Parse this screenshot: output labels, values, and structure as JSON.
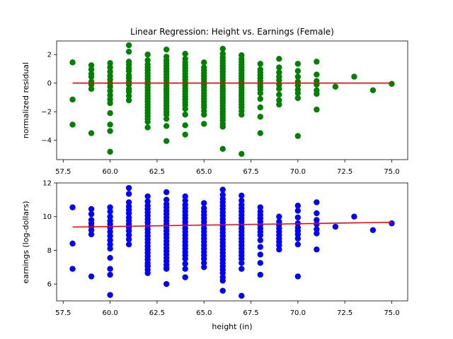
{
  "chart_data": [
    {
      "type": "scatter",
      "title": "Linear Regression: Height vs. Earnings (Female)",
      "xlabel": "",
      "ylabel": "normalized residual",
      "xlim": [
        57.15,
        75.85
      ],
      "ylim": [
        -5.35,
        2.95
      ],
      "xticks": [
        "57.5",
        "60.0",
        "62.5",
        "65.0",
        "67.5",
        "70.0",
        "72.5",
        "75.0"
      ],
      "yticks": [
        "−4",
        "−2",
        "0",
        "2"
      ],
      "ytick_values": [
        -4,
        -2,
        0,
        2
      ],
      "point_color": "#008000",
      "line_color": "#ff0000",
      "fit_line": {
        "x": [
          58,
          75
        ],
        "y": [
          0,
          0
        ]
      },
      "points": {
        "58": [
          1.45,
          -1.15,
          -2.9
        ],
        "59": [
          1.25,
          0.95,
          0.65,
          0.45,
          0.1,
          -0.1,
          -0.4,
          -3.5
        ],
        "60": [
          1.4,
          1.1,
          0.8,
          0.5,
          0.25,
          0.0,
          -0.25,
          -0.55,
          -0.85,
          -1.15,
          -1.4,
          -2.1,
          -2.9,
          -3.35,
          -4.8
        ],
        "61": [
          2.65,
          2.2,
          1.5,
          1.3,
          1.05,
          0.85,
          0.55,
          0.35,
          0.1,
          -0.1,
          -0.4,
          -0.6,
          -0.9,
          -1.2
        ],
        "62": [
          2.0,
          1.6,
          1.3,
          1.1,
          0.9,
          0.7,
          0.5,
          0.3,
          0.1,
          -0.1,
          -0.3,
          -0.5,
          -0.7,
          -0.9,
          -1.1,
          -1.3,
          -1.5,
          -1.7,
          -1.9,
          -2.1,
          -2.3,
          -2.5,
          -2.7,
          -3.1
        ],
        "63": [
          2.35,
          1.85,
          1.6,
          1.4,
          1.2,
          1.0,
          0.8,
          0.6,
          0.4,
          0.2,
          0.0,
          -0.2,
          -0.4,
          -0.6,
          -0.8,
          -1.0,
          -1.2,
          -1.4,
          -1.6,
          -1.8,
          -2.0,
          -2.2,
          -2.5,
          -3.0,
          -4.05
        ],
        "64": [
          2.05,
          1.7,
          1.45,
          1.25,
          1.05,
          0.85,
          0.65,
          0.45,
          0.25,
          0.05,
          -0.15,
          -0.35,
          -0.55,
          -0.75,
          -0.95,
          -1.15,
          -1.35,
          -1.55,
          -1.8,
          -2.2,
          -2.95,
          -3.6
        ],
        "65": [
          1.45,
          1.1,
          0.9,
          0.7,
          0.5,
          0.3,
          0.1,
          -0.1,
          -0.3,
          -0.5,
          -0.7,
          -0.9,
          -1.1,
          -1.3,
          -1.5,
          -1.7,
          -1.95,
          -2.2,
          -2.85
        ],
        "66": [
          2.4,
          2.05,
          1.8,
          1.6,
          1.4,
          1.2,
          1.0,
          0.8,
          0.6,
          0.4,
          0.2,
          0.0,
          -0.2,
          -0.4,
          -0.6,
          -0.8,
          -1.0,
          -1.2,
          -1.4,
          -1.6,
          -1.8,
          -2.0,
          -2.2,
          -2.4,
          -2.6,
          -2.85,
          -3.05,
          -4.6
        ],
        "67": [
          1.95,
          1.7,
          1.5,
          1.3,
          1.1,
          0.9,
          0.7,
          0.5,
          0.3,
          0.1,
          -0.1,
          -0.3,
          -0.5,
          -0.7,
          -0.9,
          -1.1,
          -1.3,
          -1.5,
          -1.7,
          -1.95,
          -2.2,
          -4.95
        ],
        "68": [
          1.35,
          0.95,
          0.75,
          0.55,
          0.35,
          0.15,
          -0.05,
          -0.25,
          -0.45,
          -0.7,
          -1.1,
          -1.7,
          -2.35,
          -3.5
        ],
        "69": [
          1.7,
          1.1,
          0.75,
          0.45,
          0.2,
          -0.1,
          -0.4,
          -0.8,
          -1.2,
          -1.5
        ],
        "70": [
          1.35,
          0.85,
          0.45,
          0.1,
          -0.15,
          -0.45,
          -0.7,
          -1.05,
          -3.7
        ],
        "71": [
          1.5,
          0.6,
          0.15,
          -0.1,
          -0.5,
          -0.75,
          -1.85
        ],
        "72": [
          -0.25
        ],
        "73": [
          0.45
        ],
        "74": [
          -0.5
        ],
        "75": [
          -0.05
        ]
      }
    },
    {
      "type": "scatter",
      "title": "",
      "xlabel": "height (in)",
      "ylabel": "earnings (log-dollars)",
      "xlim": [
        57.15,
        75.85
      ],
      "ylim": [
        5.0,
        12.0
      ],
      "xticks": [
        "57.5",
        "60.0",
        "62.5",
        "65.0",
        "67.5",
        "70.0",
        "72.5",
        "75.0"
      ],
      "yticks": [
        "6",
        "8",
        "10",
        "12"
      ],
      "ytick_values": [
        6,
        8,
        10,
        12
      ],
      "point_color": "#0000ff",
      "line_color": "#ff0000",
      "fit_line": {
        "x": [
          58,
          75
        ],
        "y": [
          9.38,
          9.66
        ]
      },
      "points": {
        "58": [
          10.55,
          8.4,
          6.9
        ],
        "59": [
          10.45,
          10.15,
          9.8,
          9.6,
          9.4,
          9.2,
          8.95,
          6.45
        ],
        "60": [
          10.55,
          10.3,
          10.0,
          9.75,
          9.55,
          9.35,
          9.1,
          8.85,
          8.6,
          8.35,
          8.1,
          7.55,
          6.9,
          6.55,
          5.35
        ],
        "61": [
          11.7,
          11.35,
          10.85,
          10.6,
          10.4,
          10.2,
          9.95,
          9.75,
          9.55,
          9.35,
          9.15,
          8.9,
          8.65,
          8.35
        ],
        "62": [
          11.2,
          10.9,
          10.65,
          10.45,
          10.25,
          10.05,
          9.85,
          9.65,
          9.45,
          9.25,
          9.05,
          8.85,
          8.65,
          8.45,
          8.25,
          8.05,
          7.85,
          7.65,
          7.45,
          7.25,
          7.05,
          6.85,
          6.65,
          7.1
        ],
        "63": [
          11.45,
          11.0,
          10.75,
          10.55,
          10.35,
          10.15,
          9.95,
          9.75,
          9.55,
          9.35,
          9.15,
          8.95,
          8.75,
          8.55,
          8.35,
          8.15,
          7.95,
          7.75,
          7.55,
          7.35,
          7.15,
          6.95,
          6.9,
          6.0
        ],
        "64": [
          11.2,
          10.95,
          10.7,
          10.5,
          10.3,
          10.1,
          9.9,
          9.7,
          9.5,
          9.3,
          9.1,
          8.9,
          8.7,
          8.5,
          8.3,
          8.1,
          7.9,
          7.7,
          7.5,
          7.2,
          6.9,
          6.4
        ],
        "65": [
          10.8,
          10.5,
          10.3,
          10.1,
          9.9,
          9.7,
          9.5,
          9.3,
          9.1,
          8.9,
          8.7,
          8.5,
          8.3,
          8.1,
          7.9,
          7.7,
          7.5,
          7.25,
          7.0
        ],
        "66": [
          11.6,
          11.3,
          11.05,
          10.85,
          10.65,
          10.45,
          10.25,
          10.05,
          9.85,
          9.65,
          9.45,
          9.25,
          9.05,
          8.85,
          8.65,
          8.45,
          8.25,
          8.05,
          7.85,
          7.65,
          7.45,
          7.25,
          7.05,
          6.85,
          6.65,
          6.4,
          6.2,
          5.6
        ],
        "67": [
          11.25,
          10.95,
          10.7,
          10.5,
          10.3,
          10.1,
          9.9,
          9.7,
          9.5,
          9.3,
          9.1,
          8.9,
          8.7,
          8.5,
          8.3,
          8.1,
          7.9,
          7.7,
          7.5,
          7.25,
          6.9,
          5.3
        ],
        "68": [
          10.55,
          10.3,
          10.1,
          9.9,
          9.7,
          9.5,
          9.3,
          9.1,
          8.9,
          8.6,
          8.2,
          7.75,
          7.25,
          6.55
        ],
        "69": [
          10.0,
          9.7,
          9.5,
          9.3,
          9.1,
          8.9,
          8.7,
          8.5,
          8.3,
          8.05
        ],
        "70": [
          10.65,
          10.35,
          9.95,
          9.6,
          9.35,
          9.15,
          8.95,
          8.7,
          8.35,
          6.45
        ],
        "71": [
          10.85,
          10.2,
          9.8,
          9.55,
          9.25,
          9.0,
          8.05
        ],
        "72": [
          9.4
        ],
        "73": [
          10.0
        ],
        "74": [
          9.2
        ],
        "75": [
          9.6
        ]
      }
    }
  ]
}
